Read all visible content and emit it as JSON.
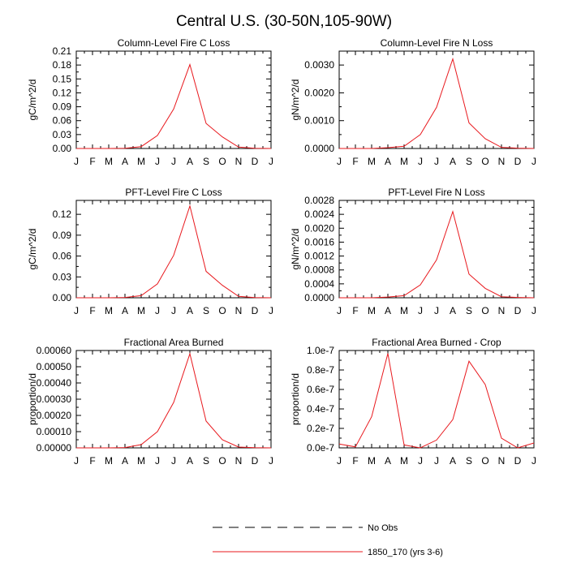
{
  "title": "Central U.S. (30-50N,105-90W)",
  "months": [
    "J",
    "F",
    "M",
    "A",
    "M",
    "J",
    "J",
    "A",
    "S",
    "O",
    "N",
    "D",
    "J"
  ],
  "legend": [
    {
      "label": "No Obs",
      "style": "dashed",
      "color": "#000000"
    },
    {
      "label": "1850_170 (yrs 3-6)",
      "style": "solid",
      "color": "#e8191e"
    }
  ],
  "chart_data": [
    {
      "type": "line",
      "title": "Column-Level Fire C Loss",
      "ylabel": "gC/m^2/d",
      "ylim": [
        0,
        0.21
      ],
      "yticks": [
        "0.00",
        "0.03",
        "0.06",
        "0.09",
        "0.12",
        "0.15",
        "0.18",
        "0.21"
      ],
      "series": [
        {
          "name": "1850_170 (yrs 3-6)",
          "values": [
            0,
            0,
            0,
            0.0005,
            0.004,
            0.028,
            0.085,
            0.181,
            0.054,
            0.025,
            0.003,
            0.0005,
            0
          ]
        }
      ]
    },
    {
      "type": "line",
      "title": "Column-Level Fire N Loss",
      "ylabel": "gN/m^2/d",
      "ylim": [
        0,
        0.0035
      ],
      "yticks": [
        "0.0000",
        "0.0010",
        "0.0020",
        "0.0030"
      ],
      "series": [
        {
          "name": "1850_170 (yrs 3-6)",
          "values": [
            0,
            0,
            0,
            3e-05,
            8e-05,
            0.0005,
            0.00148,
            0.00322,
            0.00092,
            0.00035,
            4e-05,
            1e-05,
            0
          ]
        }
      ]
    },
    {
      "type": "line",
      "title": "PFT-Level Fire C Loss",
      "ylabel": "gC/m^2/d",
      "ylim": [
        0,
        0.14
      ],
      "yticks": [
        "0.00",
        "0.03",
        "0.06",
        "0.09",
        "0.12"
      ],
      "series": [
        {
          "name": "1850_170 (yrs 3-6)",
          "values": [
            0,
            0,
            0,
            0.0004,
            0.003,
            0.02,
            0.061,
            0.132,
            0.038,
            0.018,
            0.002,
            0.0003,
            0
          ]
        }
      ]
    },
    {
      "type": "line",
      "title": "PFT-Level Fire N Loss",
      "ylabel": "gN/m^2/d",
      "ylim": [
        0,
        0.0028
      ],
      "yticks": [
        "0.0000",
        "0.0004",
        "0.0008",
        "0.0012",
        "0.0016",
        "0.0020",
        "0.0024",
        "0.0028"
      ],
      "series": [
        {
          "name": "1850_170 (yrs 3-6)",
          "values": [
            0,
            0,
            0,
            2e-05,
            6e-05,
            0.00037,
            0.00109,
            0.00248,
            0.00068,
            0.00027,
            3e-05,
            1e-05,
            0
          ]
        }
      ]
    },
    {
      "type": "line",
      "title": "Fractional Area Burned",
      "ylabel": "proportion/d",
      "ylim": [
        0,
        0.0006
      ],
      "yticks": [
        "0.00000",
        "0.00010",
        "0.00020",
        "0.00030",
        "0.00040",
        "0.00050",
        "0.00060"
      ],
      "series": [
        {
          "name": "1850_170 (yrs 3-6)",
          "values": [
            0,
            0,
            0,
            2e-06,
            2e-05,
            0.0001,
            0.00028,
            0.00058,
            0.000165,
            5e-05,
            5e-06,
            1e-06,
            0
          ]
        }
      ]
    },
    {
      "type": "line",
      "title": "Fractional Area Burned - Crop",
      "ylabel": "proportion/d",
      "ylim": [
        0,
        1e-07
      ],
      "yticks": [
        "0.0e-7",
        "0.2e-7",
        "0.4e-7",
        "0.6e-7",
        "0.8e-7",
        "1.0e-7"
      ],
      "series": [
        {
          "name": "1850_170 (yrs 3-6)",
          "values": [
            4e-09,
            1e-09,
            3.2e-08,
            9.7e-08,
            3e-09,
            0,
            8e-09,
            2.9e-08,
            8.9e-08,
            6.5e-08,
            1e-08,
            0,
            5e-09
          ]
        }
      ]
    }
  ]
}
